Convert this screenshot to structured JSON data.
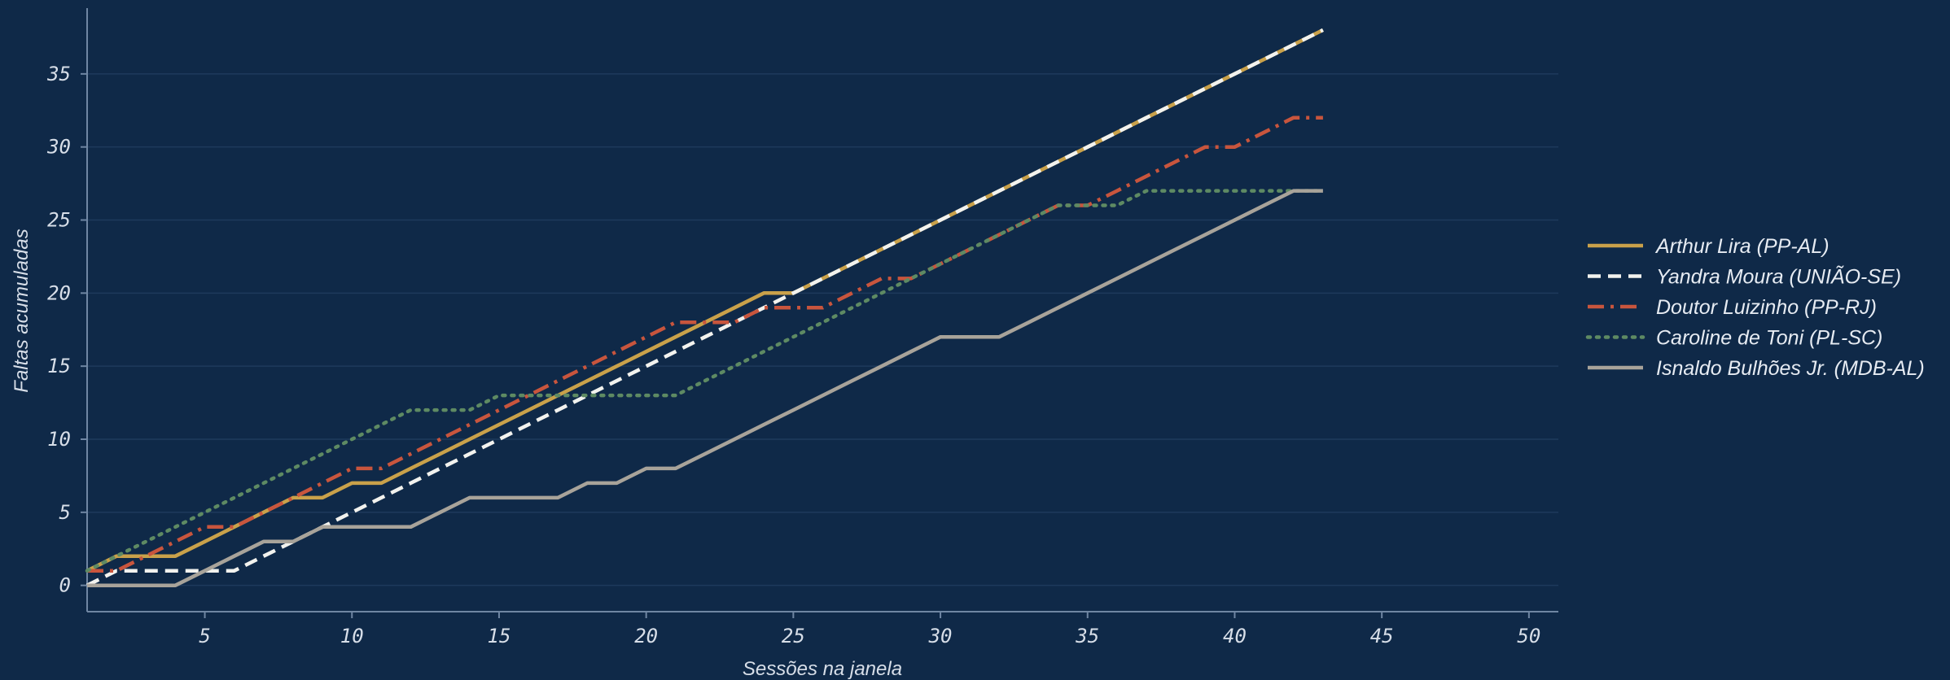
{
  "chart_data": {
    "type": "line",
    "xlabel": "Sessões na janela",
    "ylabel": "Faltas acumuladas",
    "xlim": [
      1,
      51
    ],
    "ylim": [
      -1.8,
      39.5
    ],
    "xticks": [
      5,
      10,
      15,
      20,
      25,
      30,
      35,
      40,
      45,
      50
    ],
    "yticks": [
      0,
      5,
      10,
      15,
      20,
      25,
      30,
      35
    ],
    "grid": "horizontal",
    "legend_position": "right",
    "background": "#0f2948",
    "series": [
      {
        "name": "Arthur Lira (PP-AL)",
        "color": "#c9a14a",
        "style": "solid",
        "x": [
          1,
          2,
          3,
          4,
          5,
          6,
          7,
          8,
          9,
          10,
          11,
          12,
          13,
          14,
          15,
          16,
          17,
          18,
          19,
          20,
          21,
          22,
          23,
          24,
          25,
          26,
          27,
          28,
          29,
          30,
          31,
          32,
          33,
          34,
          35,
          36,
          37,
          38,
          39,
          40,
          41,
          42,
          43
        ],
        "values": [
          1,
          2,
          2,
          2,
          3,
          4,
          5,
          6,
          6,
          7,
          7,
          8,
          9,
          10,
          11,
          12,
          13,
          14,
          15,
          16,
          17,
          18,
          19,
          20,
          20,
          21,
          22,
          23,
          24,
          25,
          26,
          27,
          28,
          29,
          30,
          31,
          32,
          33,
          34,
          35,
          36,
          37,
          38
        ]
      },
      {
        "name": "Yandra Moura (UNIÃO-SE)",
        "color": "#f2f2ee",
        "style": "dashed",
        "x": [
          1,
          2,
          3,
          4,
          5,
          6,
          7,
          8,
          9,
          10,
          11,
          12,
          13,
          14,
          15,
          16,
          17,
          18,
          19,
          20,
          21,
          22,
          23,
          24,
          25,
          26,
          27,
          28,
          29,
          30,
          31,
          32,
          33,
          34,
          35,
          36,
          37,
          38,
          39,
          40,
          41,
          42,
          43
        ],
        "values": [
          0,
          1,
          1,
          1,
          1,
          1,
          2,
          3,
          4,
          5,
          6,
          7,
          8,
          9,
          10,
          11,
          12,
          13,
          14,
          15,
          16,
          17,
          18,
          19,
          20,
          21,
          22,
          23,
          24,
          25,
          26,
          27,
          28,
          29,
          30,
          31,
          32,
          33,
          34,
          35,
          36,
          37,
          38
        ]
      },
      {
        "name": "Doutor Luizinho (PP-RJ)",
        "color": "#c8553d",
        "style": "dashdot",
        "x": [
          1,
          2,
          3,
          4,
          5,
          6,
          7,
          8,
          9,
          10,
          11,
          12,
          13,
          14,
          15,
          16,
          17,
          18,
          19,
          20,
          21,
          22,
          23,
          24,
          25,
          26,
          27,
          28,
          29,
          30,
          31,
          32,
          33,
          34,
          35,
          36,
          37,
          38,
          39,
          40,
          41,
          42,
          43
        ],
        "values": [
          1,
          1,
          2,
          3,
          4,
          4,
          5,
          6,
          7,
          8,
          8,
          9,
          10,
          11,
          12,
          13,
          14,
          15,
          16,
          17,
          18,
          18,
          18,
          19,
          19,
          19,
          20,
          21,
          21,
          22,
          23,
          24,
          25,
          26,
          26,
          27,
          28,
          29,
          30,
          30,
          31,
          32,
          32
        ]
      },
      {
        "name": "Caroline de Toni (PL-SC)",
        "color": "#5e8a63",
        "style": "dotted",
        "x": [
          1,
          2,
          3,
          4,
          5,
          6,
          7,
          8,
          9,
          10,
          11,
          12,
          13,
          14,
          15,
          16,
          17,
          18,
          19,
          20,
          21,
          22,
          23,
          24,
          25,
          26,
          27,
          28,
          29,
          30,
          31,
          32,
          33,
          34,
          35,
          36,
          37,
          38,
          39,
          40,
          41,
          42,
          43
        ],
        "values": [
          1,
          2,
          3,
          4,
          5,
          6,
          7,
          8,
          9,
          10,
          11,
          12,
          12,
          12,
          13,
          13,
          13,
          13,
          13,
          13,
          13,
          14,
          15,
          16,
          17,
          18,
          19,
          20,
          21,
          22,
          23,
          24,
          25,
          26,
          26,
          26,
          27,
          27,
          27,
          27,
          27,
          27,
          27
        ]
      },
      {
        "name": "Isnaldo Bulhões Jr. (MDB-AL)",
        "color": "#a8a39a",
        "style": "solid",
        "x": [
          1,
          2,
          3,
          4,
          5,
          6,
          7,
          8,
          9,
          10,
          11,
          12,
          13,
          14,
          15,
          16,
          17,
          18,
          19,
          20,
          21,
          22,
          23,
          24,
          25,
          26,
          27,
          28,
          29,
          30,
          31,
          32,
          33,
          34,
          35,
          36,
          37,
          38,
          39,
          40,
          41,
          42,
          43
        ],
        "values": [
          0,
          0,
          0,
          0,
          1,
          2,
          3,
          3,
          4,
          4,
          4,
          4,
          5,
          6,
          6,
          6,
          6,
          7,
          7,
          8,
          8,
          9,
          10,
          11,
          12,
          13,
          14,
          15,
          16,
          17,
          17,
          17,
          18,
          19,
          20,
          21,
          22,
          23,
          24,
          25,
          26,
          27,
          27
        ]
      }
    ]
  }
}
